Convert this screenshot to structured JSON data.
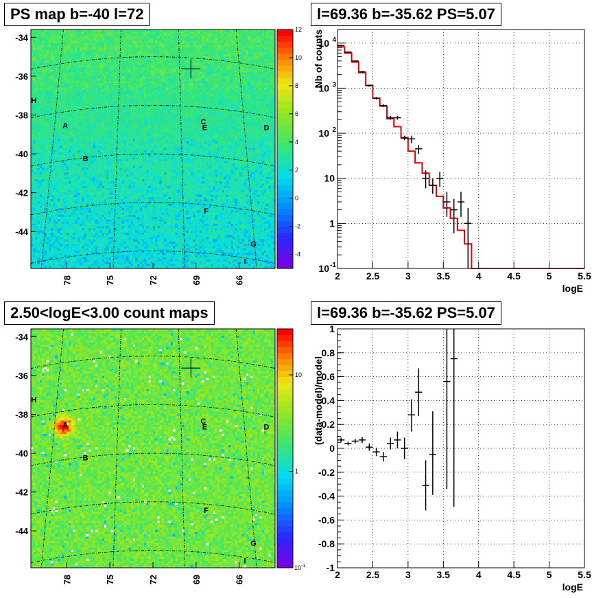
{
  "panels": {
    "ps_map": {
      "title": "PS map b=-40 l=72"
    },
    "spectrum": {
      "title": "l=69.36 b=-35.62 PS=5.07"
    },
    "count_map": {
      "title": "2.50<logE<3.00 count maps"
    },
    "residual": {
      "title": "l=69.36 b=-35.62 PS=5.07"
    }
  },
  "maps": {
    "y_ticks": [
      "-34",
      "-36",
      "-38",
      "-40",
      "-42",
      "-44"
    ],
    "x_ticks": [
      "78",
      "75",
      "72",
      "69",
      "66"
    ],
    "sources": [
      "H",
      "A",
      "B",
      "C",
      "E",
      "D",
      "F",
      "G",
      "I"
    ],
    "ps_colorbar_ticks": [
      "12",
      "10",
      "8",
      "6",
      "4",
      "2",
      "0",
      "-2",
      "-4"
    ],
    "count_colorbar_ticks": [
      "10",
      "1",
      "10"
    ],
    "count_colorbar_bottom": {
      "base": "10",
      "exp": "-1"
    }
  },
  "chart_data": [
    {
      "type": "heatmap",
      "title": "PS map b=-40 l=72",
      "xlabel": "",
      "ylabel": "",
      "xlim": [
        80.5,
        63.5
      ],
      "ylim": [
        -45.9,
        -33.6
      ],
      "colorbar_range": [
        -5,
        12
      ],
      "sources": [
        {
          "name": "H",
          "l": 80.3,
          "b": -37.2
        },
        {
          "name": "A",
          "l": 78.1,
          "b": -38.5
        },
        {
          "name": "B",
          "l": 76.7,
          "b": -40.2
        },
        {
          "name": "C",
          "l": 68.5,
          "b": -38.3
        },
        {
          "name": "E",
          "l": 68.4,
          "b": -38.6
        },
        {
          "name": "D",
          "l": 64.1,
          "b": -38.6
        },
        {
          "name": "F",
          "l": 68.3,
          "b": -42.9
        },
        {
          "name": "G",
          "l": 65.0,
          "b": -44.6
        },
        {
          "name": "I",
          "l": 65.6,
          "b": -45.5
        }
      ],
      "marker": {
        "l": 69.36,
        "b": -35.62
      }
    },
    {
      "type": "line",
      "title": "l=69.36 b=-35.62 PS=5.07",
      "xlabel": "logE",
      "ylabel": "Nb of counts",
      "xlim": [
        2,
        5.5
      ],
      "ylim": [
        0.1,
        20000
      ],
      "yscale": "log",
      "x_ticks": [
        "2",
        "2.5",
        "3",
        "3.5",
        "4",
        "4.5",
        "5",
        "5.5"
      ],
      "y_ticks": [
        {
          "v": 0.1,
          "base": "10",
          "exp": "-1"
        },
        {
          "v": 1,
          "label": "1"
        },
        {
          "v": 10,
          "label": "10"
        },
        {
          "v": 100,
          "base": "10",
          "exp": "2"
        },
        {
          "v": 1000,
          "base": "10",
          "exp": "3"
        },
        {
          "v": 10000,
          "base": "10",
          "exp": "4"
        }
      ],
      "grid": true,
      "series": [
        {
          "kind": "step",
          "color": "#e00000",
          "edges": [
            2.0,
            2.1,
            2.2,
            2.3,
            2.4,
            2.5,
            2.6,
            2.7,
            2.8,
            2.9,
            3.0,
            3.1,
            3.2,
            3.3,
            3.4,
            3.5,
            3.6,
            3.7,
            3.8,
            3.9,
            4.0,
            4.1,
            4.2,
            4.3,
            4.4,
            4.5,
            4.6,
            4.7,
            4.8,
            4.9,
            5.0,
            5.1,
            5.2,
            5.3,
            5.4,
            5.5
          ],
          "values": [
            8200,
            6000,
            3800,
            2200,
            1150,
            600,
            400,
            210,
            140,
            80,
            40,
            22,
            13,
            7,
            4,
            2.2,
            1.3,
            0.7,
            0.35,
            0.1,
            0.1,
            0.1,
            0.1,
            0.1,
            0.1,
            0.1,
            0.1,
            0.1,
            0.1,
            0.1,
            0.1,
            0.1,
            0.1,
            0.1,
            0.1
          ]
        },
        {
          "kind": "errorbar",
          "color": "#000000",
          "x": [
            2.05,
            2.15,
            2.25,
            2.35,
            2.45,
            2.55,
            2.65,
            2.75,
            2.85,
            2.95,
            3.05,
            3.15,
            3.25,
            3.35,
            3.45,
            3.55,
            3.65,
            3.75,
            3.85
          ],
          "y": [
            8800,
            6300,
            4000,
            2300,
            1140,
            600,
            410,
            220,
            220,
            78,
            75,
            45,
            10,
            7,
            10,
            3,
            2,
            3,
            1
          ],
          "lo": [
            8600,
            6100,
            3840,
            2180,
            1080,
            560,
            380,
            200,
            200,
            70,
            60,
            35,
            6,
            4.5,
            6.5,
            1.4,
            0.6,
            1.4,
            0.1
          ],
          "hi": [
            9000,
            6500,
            4160,
            2420,
            1200,
            640,
            440,
            240,
            240,
            88,
            88,
            55,
            15,
            10,
            14,
            5,
            3.5,
            5,
            2.2
          ]
        }
      ]
    },
    {
      "type": "heatmap",
      "title": "2.50<logE<3.00 count maps",
      "xlabel": "",
      "ylabel": "",
      "xlim": [
        80.5,
        63.5
      ],
      "ylim": [
        -45.9,
        -33.6
      ],
      "colorbar_scale": "log",
      "colorbar_range": [
        0.1,
        30
      ],
      "hotspot": {
        "l": 78.1,
        "b": -38.5
      }
    },
    {
      "type": "scatter",
      "title": "l=69.36 b=-35.62 PS=5.07",
      "xlabel": "logE",
      "ylabel": "(data-model)/model",
      "xlim": [
        2,
        5.5
      ],
      "ylim": [
        -1,
        1
      ],
      "x_ticks": [
        "2",
        "2.5",
        "3",
        "3.5",
        "4",
        "4.5",
        "5",
        "5.5"
      ],
      "y_ticks": [
        "1",
        "0.8",
        "0.6",
        "0.4",
        "0.2",
        "0",
        "-0.2",
        "-0.4",
        "-0.6",
        "-0.8",
        "-1"
      ],
      "grid": true,
      "series": [
        {
          "kind": "errorbar",
          "color": "#000000",
          "x": [
            2.05,
            2.15,
            2.25,
            2.35,
            2.45,
            2.55,
            2.65,
            2.75,
            2.85,
            2.95,
            3.05,
            3.15,
            3.25,
            3.35,
            3.55,
            3.65
          ],
          "y": [
            0.07,
            0.04,
            0.06,
            0.07,
            0.01,
            -0.03,
            -0.07,
            0.04,
            0.07,
            0.0,
            0.28,
            0.47,
            -0.31,
            -0.05,
            0.56,
            0.75
          ],
          "lo": [
            0.05,
            0.025,
            0.04,
            0.045,
            -0.02,
            -0.065,
            -0.11,
            -0.01,
            0.0,
            -0.09,
            0.14,
            0.27,
            -0.52,
            -0.39,
            -0.34,
            -0.49
          ],
          "hi": [
            0.09,
            0.055,
            0.08,
            0.095,
            0.04,
            0.005,
            -0.03,
            0.09,
            0.14,
            0.09,
            0.41,
            0.67,
            -0.1,
            0.31,
            1.0,
            1.0
          ]
        }
      ]
    }
  ]
}
